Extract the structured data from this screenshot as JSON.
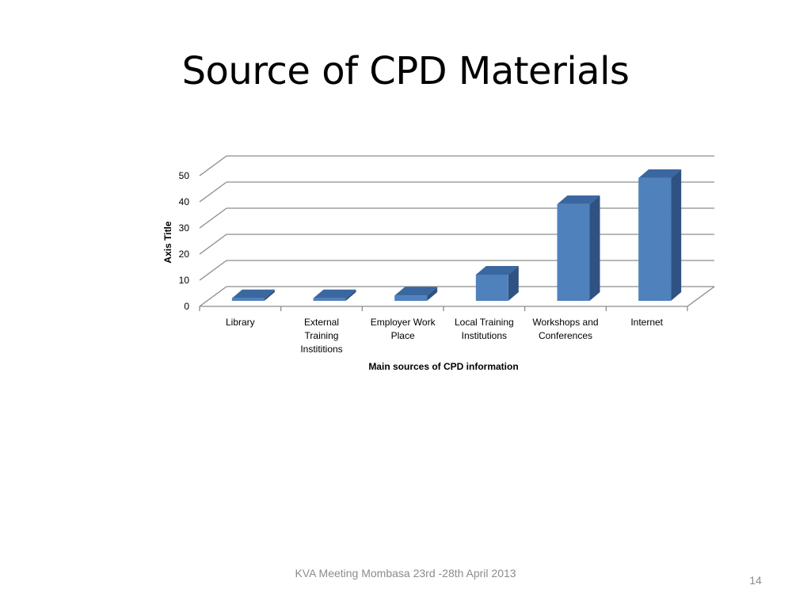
{
  "slide": {
    "title": "Source of CPD Materials",
    "footer": "KVA Meeting Mombasa 23rd -28th April 2013",
    "page_number": "14"
  },
  "colors": {
    "bar_front": "#4f81bd",
    "bar_top": "#3a67a0",
    "bar_side": "#2f5282",
    "grid": "#8c8c8c",
    "text": "#000000"
  },
  "chart_data": {
    "type": "bar",
    "style": "3d-column",
    "categories": [
      "Library",
      "External Training Instititions",
      "Employer Work Place",
      "Local Training Institutions",
      "Workshops and Conferences",
      "Internet"
    ],
    "category_lines": [
      [
        "Library"
      ],
      [
        "External",
        "Training",
        "Instititions"
      ],
      [
        "Employer Work",
        "Place"
      ],
      [
        "Local Training",
        "Institutions"
      ],
      [
        "Workshops and",
        "Conferences"
      ],
      [
        "Internet"
      ]
    ],
    "values": [
      1,
      1,
      2,
      10,
      37,
      47
    ],
    "xlabel": "Main sources of CPD information",
    "ylabel": "Axis Title",
    "ylim": [
      0,
      50
    ],
    "yticks": [
      0,
      10,
      20,
      30,
      40,
      50
    ],
    "grid": true,
    "legend": "none"
  }
}
